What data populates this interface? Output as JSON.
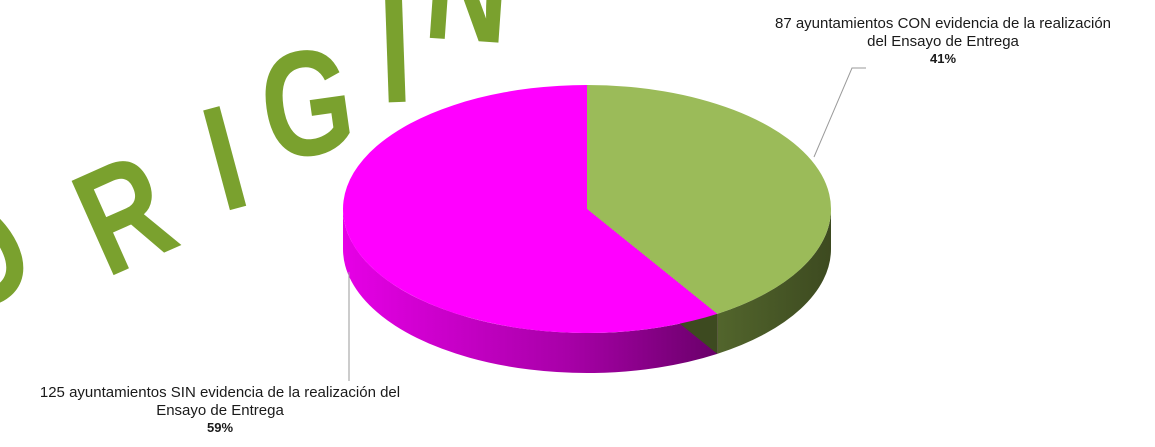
{
  "chart_data": {
    "type": "pie",
    "style": "3d",
    "slices": [
      {
        "label_line1": "87 ayuntamientos CON evidencia de la realización",
        "label_line2": "del Ensayo de Entrega",
        "count": 87,
        "percent_label": "41%",
        "percent": 41,
        "color": "#9bbb59",
        "side_color": "#4a5a28"
      },
      {
        "label_line1": "125 ayuntamientos SIN evidencia de la realización del",
        "label_line2": "Ensayo de Entrega",
        "count": 125,
        "percent_label": "59%",
        "percent": 59,
        "color": "#ff00ff",
        "side_color": "#a000a0"
      }
    ]
  },
  "watermark": {
    "text": "ORIGINAL",
    "color": "#7aa12e"
  }
}
